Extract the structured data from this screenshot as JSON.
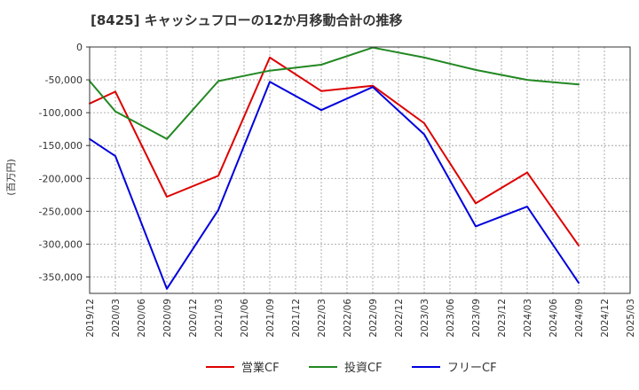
{
  "chart_data": {
    "type": "line",
    "title": "[8425]  キャッシュフローの12か月移動合計の推移",
    "ylabel": "(百万円)",
    "xlabel": "",
    "x": [
      "2019/12",
      "2020/03",
      "2020/06",
      "2020/09",
      "2020/12",
      "2021/03",
      "2021/06",
      "2021/09",
      "2021/12",
      "2022/03",
      "2022/06",
      "2022/09",
      "2022/12",
      "2023/03",
      "2023/06",
      "2023/09",
      "2023/12",
      "2024/03",
      "2024/06",
      "2024/09",
      "2024/12",
      "2025/03"
    ],
    "ylim": [
      -375000,
      0
    ],
    "yticks": [
      0,
      -50000,
      -100000,
      -150000,
      -200000,
      -250000,
      -300000,
      -350000
    ],
    "ytick_labels": [
      "0",
      "-50,000",
      "-100,000",
      "-150,000",
      "-200,000",
      "-250,000",
      "-300,000",
      "-350,000"
    ],
    "grid": true,
    "legend_position": "bottom",
    "series": [
      {
        "name": "営業CF",
        "color": "#dd0000",
        "values": [
          -86000,
          -68000,
          null,
          -228000,
          null,
          -196000,
          null,
          -16000,
          null,
          -67000,
          null,
          -59000,
          null,
          -116000,
          null,
          -238000,
          null,
          -191000,
          null,
          -302000,
          null,
          null
        ]
      },
      {
        "name": "投資CF",
        "color": "#228822",
        "values": [
          -52000,
          -98000,
          null,
          -140000,
          null,
          -52000,
          null,
          -36000,
          null,
          -27000,
          null,
          -1000,
          null,
          -16000,
          null,
          -35000,
          null,
          -50000,
          null,
          -57000,
          null,
          null
        ]
      },
      {
        "name": "フリーCF",
        "color": "#0000dd",
        "values": [
          -140000,
          -166000,
          null,
          -368000,
          null,
          -248000,
          null,
          -53000,
          null,
          -96000,
          null,
          -61000,
          null,
          -133000,
          null,
          -273000,
          null,
          -243000,
          null,
          -359000,
          null,
          null
        ]
      }
    ]
  }
}
